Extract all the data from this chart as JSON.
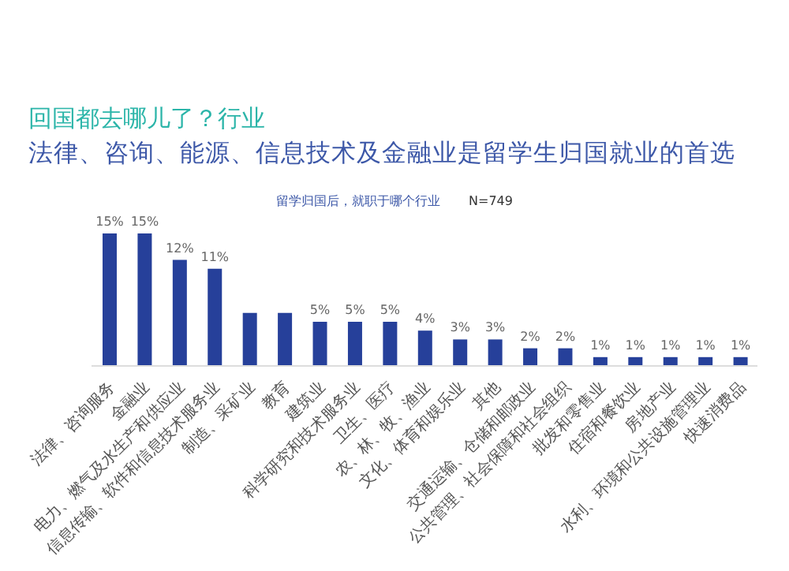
{
  "chart_data": {
    "type": "bar",
    "title": "回国都去哪儿了？行业",
    "subtitle": "法律、咨询、能源、信息技术及金融业是留学生归国就业的首选",
    "annotations": [
      "留学归国后，就职于哪个行业",
      "N=749"
    ],
    "categories": [
      "法律、咨询服务",
      "金融业",
      "电力、燃气及水生产和供应业",
      "信息传输、软件和信息技术服务业",
      "制造、采矿业",
      "教育",
      "建筑业",
      "科学研究和技术服务业",
      "卫生、医疗",
      "农、林、牧、渔业",
      "文化、体育和娱乐业",
      "其他",
      "交通运输、仓储和邮政业",
      "公共管理、社会保障和社会组织",
      "批发和零售业",
      "住宿和餐饮业",
      "房地产业",
      "水利、环境和公共设施管理业",
      "快速消费品"
    ],
    "values": [
      15,
      15,
      12,
      11,
      6,
      6,
      5,
      5,
      5,
      4,
      3,
      3,
      2,
      2,
      1,
      1,
      1,
      1,
      1
    ],
    "value_labels": [
      "15%",
      "15%",
      "12%",
      "11%",
      null,
      null,
      "5%",
      "5%",
      "5%",
      "4%",
      "3%",
      "3%",
      "2%",
      "2%",
      "1%",
      "1%",
      "1%",
      "1%",
      "1%"
    ],
    "color": "#26409a"
  }
}
